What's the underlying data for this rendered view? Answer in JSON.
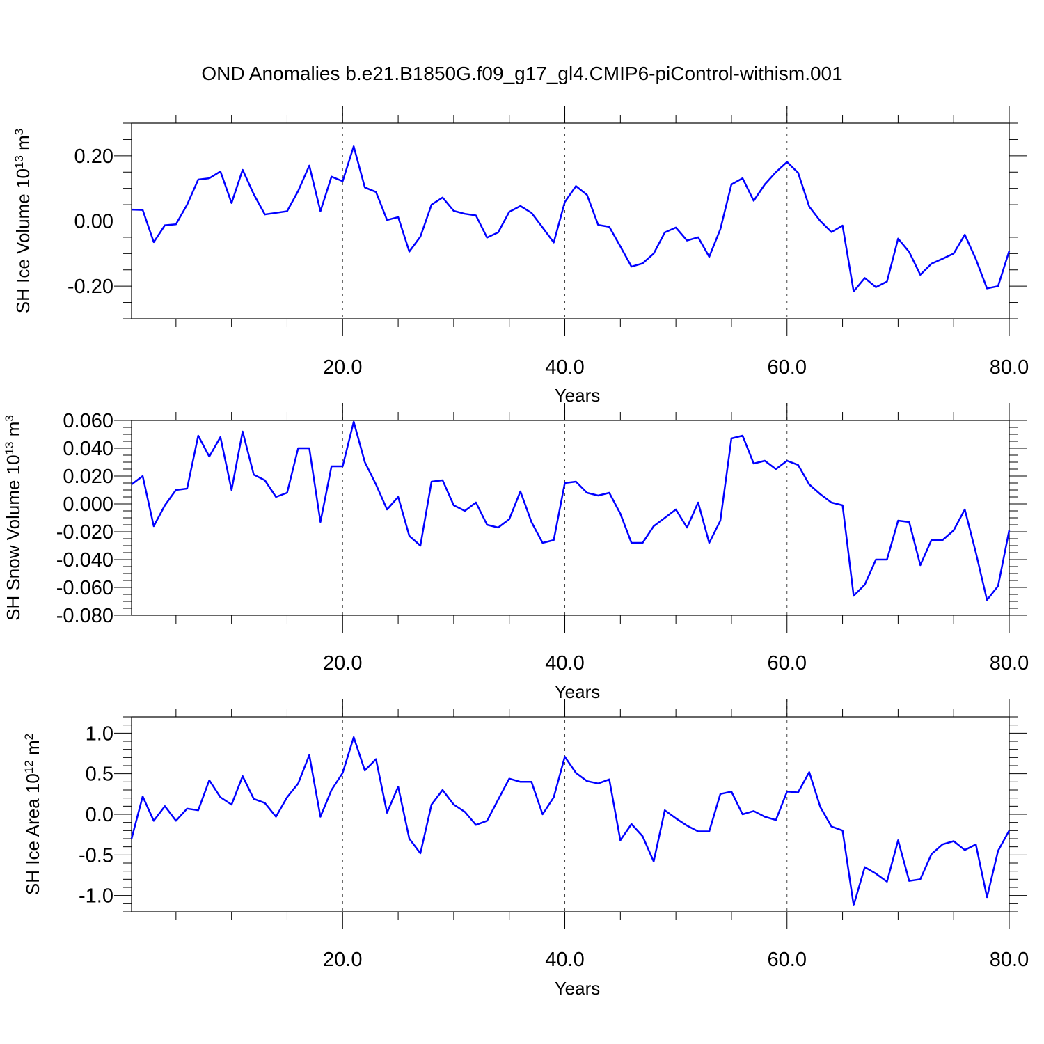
{
  "title": "OND Anomalies b.e21.B1850G.f09_g17_gl4.CMIP6-piControl-withism.001",
  "chart_data": [
    {
      "type": "line",
      "ylabel": "SH Ice Volume 10",
      "ylabel_sup": "13",
      "ylabel_unit": " m",
      "ylabel_unit_sup": "3",
      "xlabel": "Years",
      "xlim": [
        1,
        80
      ],
      "ylim": [
        -0.3,
        0.3
      ],
      "xticks": [
        20,
        40,
        60,
        80
      ],
      "xtick_labels": [
        "20.0",
        "40.0",
        "60.0",
        "80.0"
      ],
      "yticks": [
        0.2,
        0.0,
        -0.2
      ],
      "ytick_labels": [
        "0.20",
        "0.00",
        "-0.20"
      ],
      "x_minor_step": 5,
      "y_minor_step": 0.05,
      "grid_x": [
        20,
        40,
        60
      ],
      "line_color": "#0000ff",
      "x": [
        1,
        2,
        3,
        4,
        5,
        6,
        7,
        8,
        9,
        10,
        11,
        12,
        13,
        14,
        15,
        16,
        17,
        18,
        19,
        20,
        21,
        22,
        23,
        24,
        25,
        26,
        27,
        28,
        29,
        30,
        31,
        32,
        33,
        34,
        35,
        36,
        37,
        38,
        39,
        40,
        41,
        42,
        43,
        44,
        45,
        46,
        47,
        48,
        49,
        50,
        51,
        52,
        53,
        54,
        55,
        56,
        57,
        58,
        59,
        60,
        61,
        62,
        63,
        64,
        65,
        66,
        67,
        68,
        69,
        70,
        71,
        72,
        73,
        74,
        75,
        76,
        77,
        78,
        79,
        80
      ],
      "values": [
        0.035,
        0.034,
        -0.065,
        -0.013,
        -0.01,
        0.05,
        0.127,
        0.131,
        0.152,
        0.055,
        0.157,
        0.082,
        0.02,
        0.025,
        0.03,
        0.092,
        0.17,
        0.03,
        0.136,
        0.122,
        0.229,
        0.103,
        0.089,
        0.003,
        0.012,
        -0.094,
        -0.048,
        0.05,
        0.072,
        0.031,
        0.022,
        0.017,
        -0.051,
        -0.035,
        0.028,
        0.046,
        0.025,
        -0.02,
        -0.066,
        0.058,
        0.107,
        0.08,
        -0.012,
        -0.018,
        -0.078,
        -0.14,
        -0.13,
        -0.1,
        -0.035,
        -0.02,
        -0.06,
        -0.05,
        -0.11,
        -0.025,
        0.112,
        0.131,
        0.062,
        0.112,
        0.15,
        0.181,
        0.148,
        0.044,
        0.0,
        -0.034,
        -0.014,
        -0.216,
        -0.175,
        -0.203,
        -0.186,
        -0.054,
        -0.095,
        -0.165,
        -0.131,
        -0.116,
        -0.1,
        -0.042,
        -0.117,
        -0.207,
        -0.2,
        -0.092
      ]
    },
    {
      "type": "line",
      "ylabel": "SH Snow Volume 10",
      "ylabel_sup": "13",
      "ylabel_unit": " m",
      "ylabel_unit_sup": "3",
      "xlabel": "Years",
      "xlim": [
        1,
        80
      ],
      "ylim": [
        -0.08,
        0.06
      ],
      "xticks": [
        20,
        40,
        60,
        80
      ],
      "xtick_labels": [
        "20.0",
        "40.0",
        "60.0",
        "80.0"
      ],
      "yticks": [
        0.06,
        0.04,
        0.02,
        0.0,
        -0.02,
        -0.04,
        -0.06,
        -0.08
      ],
      "ytick_labels": [
        "0.060",
        "0.040",
        "0.020",
        "0.000",
        "-0.020",
        "-0.040",
        "-0.060",
        "-0.080"
      ],
      "x_minor_step": 5,
      "y_minor_step": 0.005,
      "grid_x": [
        20,
        40,
        60
      ],
      "line_color": "#0000ff",
      "x": [
        1,
        2,
        3,
        4,
        5,
        6,
        7,
        8,
        9,
        10,
        11,
        12,
        13,
        14,
        15,
        16,
        17,
        18,
        19,
        20,
        21,
        22,
        23,
        24,
        25,
        26,
        27,
        28,
        29,
        30,
        31,
        32,
        33,
        34,
        35,
        36,
        37,
        38,
        39,
        40,
        41,
        42,
        43,
        44,
        45,
        46,
        47,
        48,
        49,
        50,
        51,
        52,
        53,
        54,
        55,
        56,
        57,
        58,
        59,
        60,
        61,
        62,
        63,
        64,
        65,
        66,
        67,
        68,
        69,
        70,
        71,
        72,
        73,
        74,
        75,
        76,
        77,
        78,
        79,
        80
      ],
      "values": [
        0.014,
        0.02,
        -0.016,
        -0.001,
        0.01,
        0.011,
        0.049,
        0.034,
        0.048,
        0.01,
        0.052,
        0.021,
        0.017,
        0.005,
        0.008,
        0.04,
        0.04,
        -0.013,
        0.027,
        0.027,
        0.059,
        0.03,
        0.014,
        -0.004,
        0.005,
        -0.023,
        -0.03,
        0.016,
        0.017,
        -0.001,
        -0.005,
        0.001,
        -0.015,
        -0.017,
        -0.011,
        0.009,
        -0.013,
        -0.028,
        -0.026,
        0.015,
        0.016,
        0.008,
        0.006,
        0.008,
        -0.007,
        -0.028,
        -0.028,
        -0.016,
        -0.01,
        -0.004,
        -0.017,
        0.001,
        -0.028,
        -0.012,
        0.047,
        0.049,
        0.029,
        0.031,
        0.025,
        0.031,
        0.028,
        0.014,
        0.007,
        0.001,
        -0.001,
        -0.066,
        -0.058,
        -0.04,
        -0.04,
        -0.012,
        -0.013,
        -0.044,
        -0.026,
        -0.026,
        -0.019,
        -0.004,
        -0.035,
        -0.069,
        -0.059,
        -0.019
      ]
    },
    {
      "type": "line",
      "ylabel": "SH Ice Area 10",
      "ylabel_sup": "12",
      "ylabel_unit": " m",
      "ylabel_unit_sup": "2",
      "xlabel": "Years",
      "xlim": [
        1,
        80
      ],
      "ylim": [
        -1.2,
        1.2
      ],
      "xticks": [
        20,
        40,
        60,
        80
      ],
      "xtick_labels": [
        "20.0",
        "40.0",
        "60.0",
        "80.0"
      ],
      "yticks": [
        1.0,
        0.5,
        0.0,
        -0.5,
        -1.0
      ],
      "ytick_labels": [
        "1.0",
        "0.5",
        "0.0",
        "-0.5",
        "-1.0"
      ],
      "x_minor_step": 5,
      "y_minor_step": 0.1,
      "grid_x": [
        20,
        40,
        60
      ],
      "line_color": "#0000ff",
      "x": [
        1,
        2,
        3,
        4,
        5,
        6,
        7,
        8,
        9,
        10,
        11,
        12,
        13,
        14,
        15,
        16,
        17,
        18,
        19,
        20,
        21,
        22,
        23,
        24,
        25,
        26,
        27,
        28,
        29,
        30,
        31,
        32,
        33,
        34,
        35,
        36,
        37,
        38,
        39,
        40,
        41,
        42,
        43,
        44,
        45,
        46,
        47,
        48,
        49,
        50,
        51,
        52,
        53,
        54,
        55,
        56,
        57,
        58,
        59,
        60,
        61,
        62,
        63,
        64,
        65,
        66,
        67,
        68,
        69,
        70,
        71,
        72,
        73,
        74,
        75,
        76,
        77,
        78,
        79,
        80
      ],
      "values": [
        -0.3,
        0.22,
        -0.08,
        0.1,
        -0.08,
        0.07,
        0.05,
        0.42,
        0.21,
        0.12,
        0.47,
        0.19,
        0.14,
        -0.03,
        0.21,
        0.38,
        0.73,
        -0.03,
        0.3,
        0.51,
        0.95,
        0.54,
        0.68,
        0.02,
        0.34,
        -0.3,
        -0.48,
        0.12,
        0.3,
        0.12,
        0.03,
        -0.13,
        -0.08,
        0.18,
        0.44,
        0.4,
        0.4,
        0.0,
        0.21,
        0.71,
        0.51,
        0.41,
        0.38,
        0.43,
        -0.32,
        -0.12,
        -0.27,
        -0.58,
        0.05,
        -0.05,
        -0.14,
        -0.21,
        -0.21,
        0.25,
        0.28,
        0.0,
        0.04,
        -0.03,
        -0.07,
        0.28,
        0.27,
        0.52,
        0.09,
        -0.15,
        -0.2,
        -1.12,
        -0.65,
        -0.73,
        -0.83,
        -0.32,
        -0.82,
        -0.8,
        -0.49,
        -0.37,
        -0.33,
        -0.44,
        -0.37,
        -1.02,
        -0.45,
        -0.2
      ]
    }
  ]
}
